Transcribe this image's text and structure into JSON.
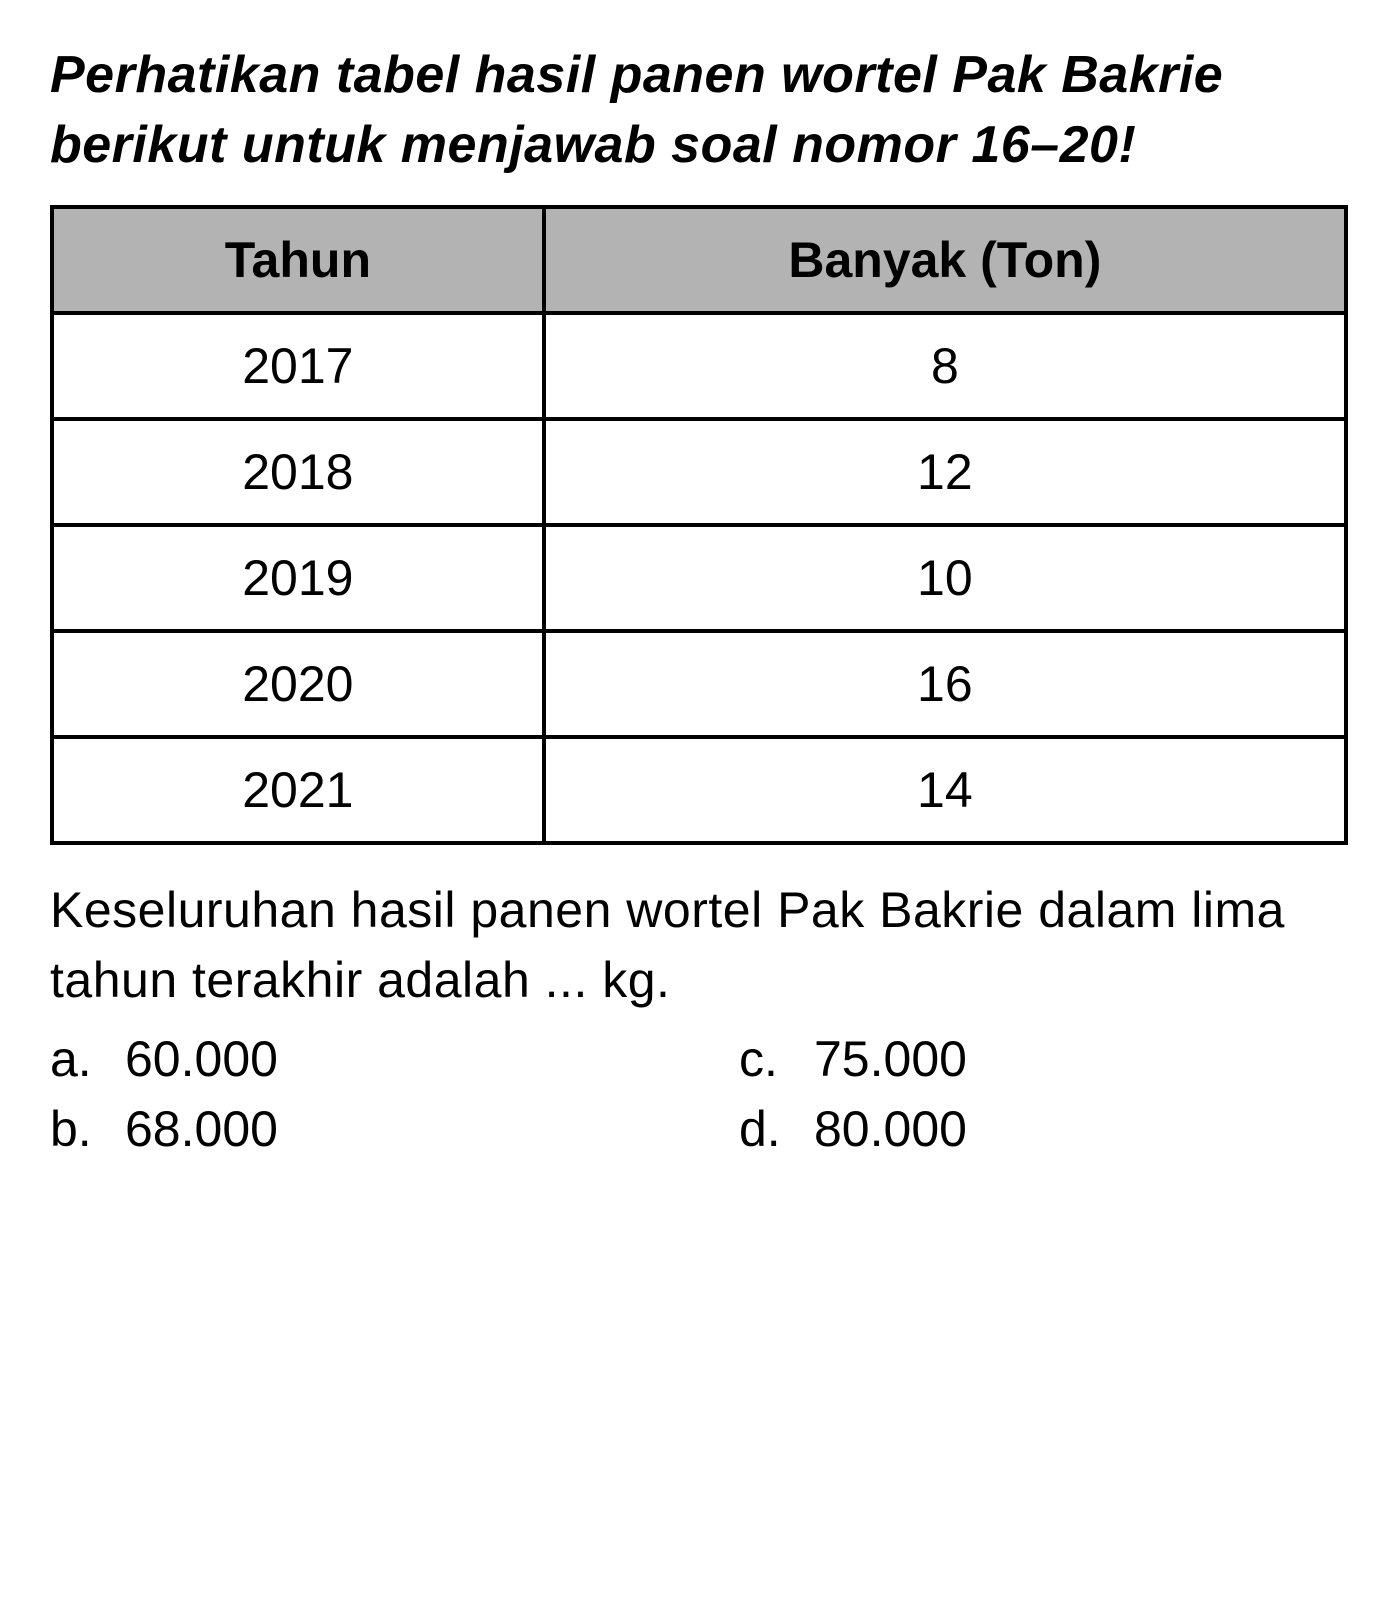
{
  "instruction": "Perhatikan tabel hasil panen wortel Pak Bakrie berikut untuk menjawab soal nomor 16–20!",
  "table": {
    "columns": [
      "Tahun",
      "Banyak (Ton)"
    ],
    "rows": [
      [
        "2017",
        "8"
      ],
      [
        "2018",
        "12"
      ],
      [
        "2019",
        "10"
      ],
      [
        "2020",
        "16"
      ],
      [
        "2021",
        "14"
      ]
    ],
    "header_bg_color": "#b3b3b3",
    "border_color": "#000000",
    "border_width": 4,
    "header_fontsize": 50,
    "cell_fontsize": 50,
    "col_widths_pct": [
      38,
      62
    ]
  },
  "question": "Keseluruhan hasil panen wortel Pak Bakrie dalam lima tahun terakhir adalah ... kg.",
  "options": {
    "a": {
      "letter": "a.",
      "value": "60.000"
    },
    "b": {
      "letter": "b.",
      "value": "68.000"
    },
    "c": {
      "letter": "c.",
      "value": "75.000"
    },
    "d": {
      "letter": "d.",
      "value": "80.000"
    }
  },
  "styling": {
    "background_color": "#ffffff",
    "text_color": "#000000",
    "instruction_fontsize": 52,
    "instruction_fontweight": "bold",
    "instruction_fontstyle": "italic",
    "question_fontsize": 50,
    "option_fontsize": 50,
    "font_family": "Arial"
  }
}
